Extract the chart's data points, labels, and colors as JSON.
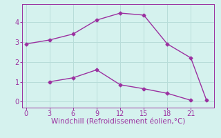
{
  "line1_x": [
    0,
    3,
    6,
    9,
    12,
    15,
    18,
    21,
    23
  ],
  "line1_y": [
    2.9,
    3.1,
    3.4,
    4.1,
    4.45,
    4.35,
    2.9,
    2.2,
    0.07
  ],
  "line2_x": [
    3,
    6,
    9,
    12,
    15,
    18,
    21
  ],
  "line2_y": [
    1.0,
    1.2,
    1.6,
    0.85,
    0.65,
    0.42,
    0.07
  ],
  "line_color": "#9B30A0",
  "bg_color": "#D5F2EE",
  "grid_color": "#B8DDD9",
  "xlabel": "Windchill (Refroidissement éolien,°C)",
  "xlabel_color": "#9B30A0",
  "xlim": [
    -0.5,
    24
  ],
  "ylim": [
    -0.3,
    4.9
  ],
  "xticks": [
    0,
    3,
    6,
    9,
    12,
    15,
    18,
    21
  ],
  "yticks": [
    0,
    1,
    2,
    3,
    4
  ],
  "tick_color": "#9B30A0",
  "marker": "D",
  "marker_size": 2.5,
  "line_width": 1.0,
  "xlabel_fontsize": 7.5,
  "tick_fontsize": 7
}
